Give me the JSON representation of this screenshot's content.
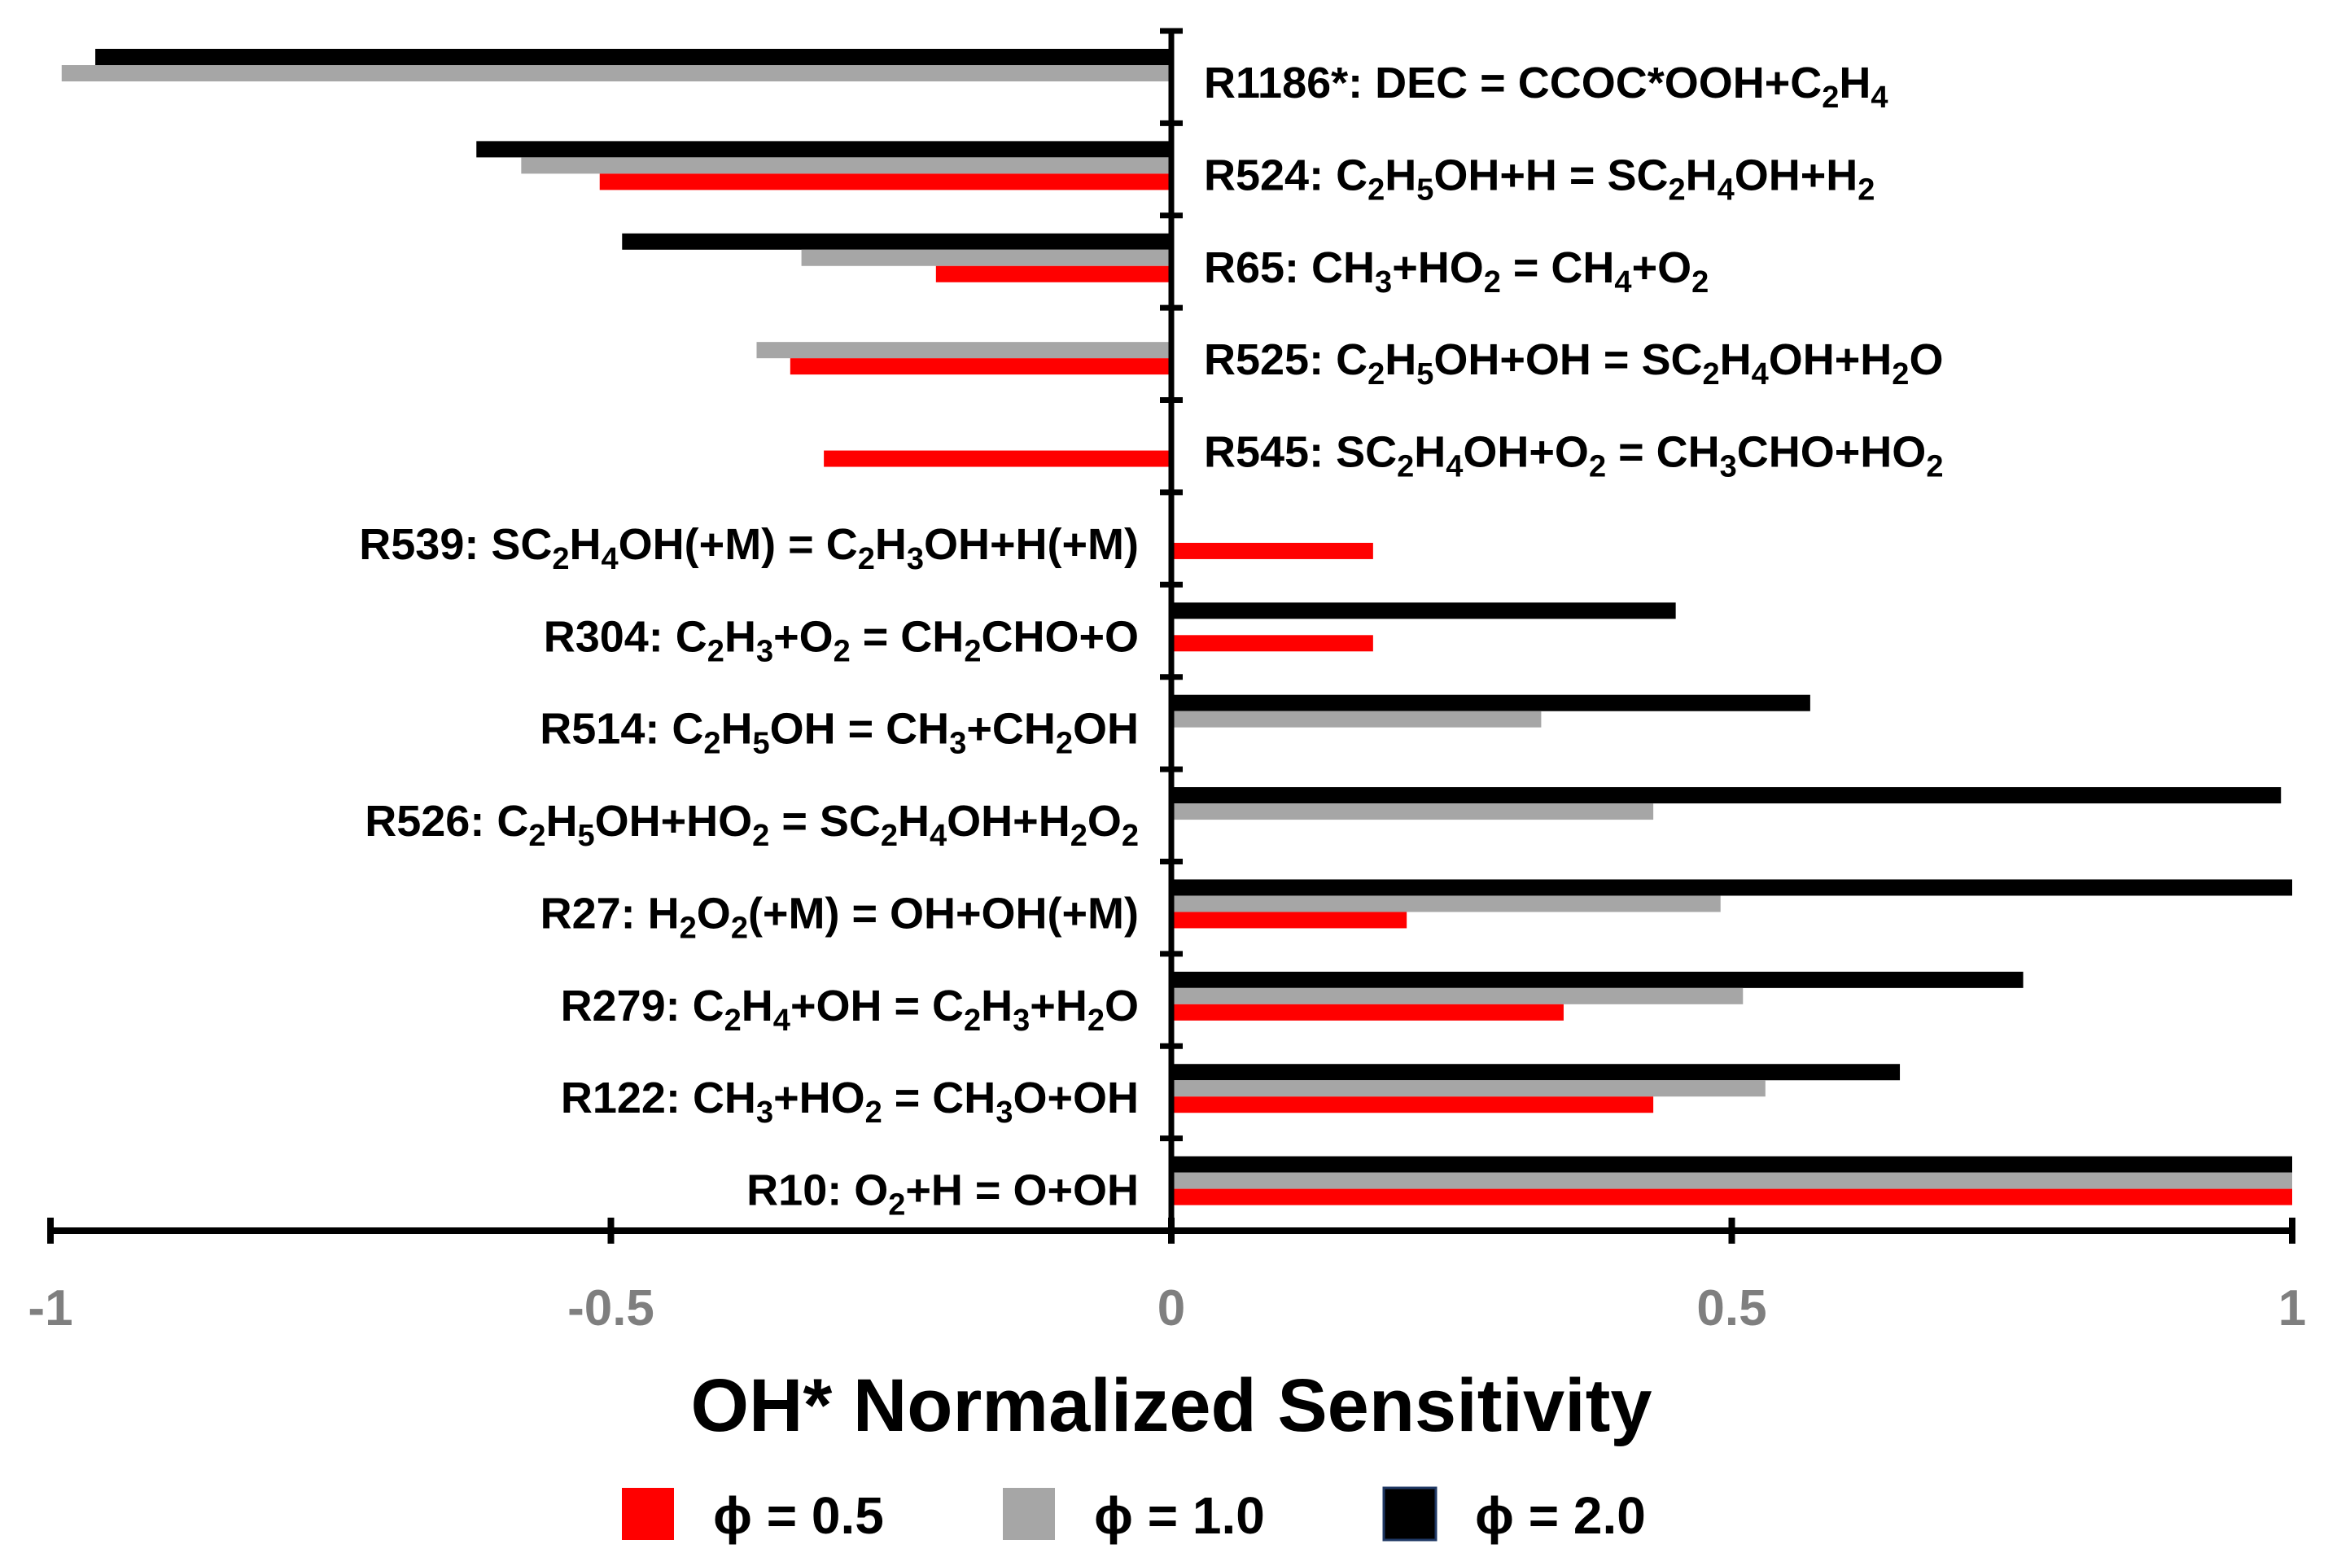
{
  "chart_data": {
    "type": "bar",
    "orientation": "horizontal",
    "xlabel": "OH* Normalized Sensitivity",
    "xlim": [
      -1,
      1
    ],
    "xticks": [
      -1,
      -0.5,
      0,
      0.5,
      1
    ],
    "xtick_labels": [
      "-1",
      "-0.5",
      "0",
      "0.5",
      "1"
    ],
    "legend_placement": "bottom",
    "categories": [
      {
        "id": "R1186",
        "prefix": "R1186*: ",
        "side": "right",
        "parts": [
          [
            "DEC = CCOC*OOH+C"
          ],
          [
            "2",
            "sub"
          ],
          [
            "H"
          ],
          [
            "4",
            "sub"
          ]
        ]
      },
      {
        "id": "R524",
        "prefix": "R524: ",
        "side": "right",
        "parts": [
          [
            "C"
          ],
          [
            "2",
            "sub"
          ],
          [
            "H"
          ],
          [
            "5",
            "sub"
          ],
          [
            "OH+H = SC"
          ],
          [
            "2",
            "sub"
          ],
          [
            "H"
          ],
          [
            "4",
            "sub"
          ],
          [
            "OH+H"
          ],
          [
            "2",
            "sub"
          ]
        ]
      },
      {
        "id": "R65",
        "prefix": "R65: ",
        "side": "right",
        "parts": [
          [
            "CH"
          ],
          [
            "3",
            "sub"
          ],
          [
            "+HO"
          ],
          [
            "2",
            "sub"
          ],
          [
            " = CH"
          ],
          [
            "4",
            "sub"
          ],
          [
            "+O"
          ],
          [
            "2",
            "sub"
          ]
        ]
      },
      {
        "id": "R525",
        "prefix": "R525: ",
        "side": "right",
        "parts": [
          [
            "C"
          ],
          [
            "2",
            "sub"
          ],
          [
            "H"
          ],
          [
            "5",
            "sub"
          ],
          [
            "OH+OH = SC"
          ],
          [
            "2",
            "sub"
          ],
          [
            "H"
          ],
          [
            "4",
            "sub"
          ],
          [
            "OH+H"
          ],
          [
            "2",
            "sub"
          ],
          [
            "O"
          ]
        ]
      },
      {
        "id": "R545",
        "prefix": "R545: ",
        "side": "right",
        "parts": [
          [
            "SC"
          ],
          [
            "2",
            "sub"
          ],
          [
            "H"
          ],
          [
            "4",
            "sub"
          ],
          [
            "OH+O"
          ],
          [
            "2",
            "sub"
          ],
          [
            " = CH"
          ],
          [
            "3",
            "sub"
          ],
          [
            "CHO+HO"
          ],
          [
            "2",
            "sub"
          ]
        ]
      },
      {
        "id": "R539",
        "prefix": "R539: ",
        "side": "left",
        "parts": [
          [
            "SC"
          ],
          [
            "2",
            "sub"
          ],
          [
            "H"
          ],
          [
            "4",
            "sub"
          ],
          [
            "OH(+M) = C"
          ],
          [
            "2",
            "sub"
          ],
          [
            "H"
          ],
          [
            "3",
            "sub"
          ],
          [
            "OH+H(+M)"
          ]
        ]
      },
      {
        "id": "R304",
        "prefix": "R304: ",
        "side": "left",
        "parts": [
          [
            "C"
          ],
          [
            "2",
            "sub"
          ],
          [
            "H"
          ],
          [
            "3",
            "sub"
          ],
          [
            "+O"
          ],
          [
            "2",
            "sub"
          ],
          [
            " = CH"
          ],
          [
            "2",
            "sub"
          ],
          [
            "CHO+O"
          ]
        ]
      },
      {
        "id": "R514",
        "prefix": "R514: ",
        "side": "left",
        "parts": [
          [
            "C"
          ],
          [
            "2",
            "sub"
          ],
          [
            "H"
          ],
          [
            "5",
            "sub"
          ],
          [
            "OH = CH"
          ],
          [
            "3",
            "sub"
          ],
          [
            "+CH"
          ],
          [
            "2",
            "sub"
          ],
          [
            "OH"
          ]
        ]
      },
      {
        "id": "R526",
        "prefix": "R526: ",
        "side": "left",
        "parts": [
          [
            "C"
          ],
          [
            "2",
            "sub"
          ],
          [
            "H"
          ],
          [
            "5",
            "sub"
          ],
          [
            "OH+HO"
          ],
          [
            "2",
            "sub"
          ],
          [
            " = SC"
          ],
          [
            "2",
            "sub"
          ],
          [
            "H"
          ],
          [
            "4",
            "sub"
          ],
          [
            "OH+H"
          ],
          [
            "2",
            "sub"
          ],
          [
            "O"
          ],
          [
            "2",
            "sub"
          ]
        ]
      },
      {
        "id": "R27",
        "prefix": "R27: ",
        "side": "left",
        "parts": [
          [
            "H"
          ],
          [
            "2",
            "sub"
          ],
          [
            "O"
          ],
          [
            "2",
            "sub"
          ],
          [
            "(+M) = OH+OH(+M)"
          ]
        ]
      },
      {
        "id": "R279",
        "prefix": "R279: ",
        "side": "left",
        "parts": [
          [
            "C"
          ],
          [
            "2",
            "sub"
          ],
          [
            "H"
          ],
          [
            "4",
            "sub"
          ],
          [
            "+OH = C"
          ],
          [
            "2",
            "sub"
          ],
          [
            "H"
          ],
          [
            "3",
            "sub"
          ],
          [
            "+H"
          ],
          [
            "2",
            "sub"
          ],
          [
            "O"
          ]
        ]
      },
      {
        "id": "R122",
        "prefix": "R122: ",
        "side": "left",
        "parts": [
          [
            "CH"
          ],
          [
            "3",
            "sub"
          ],
          [
            "+HO"
          ],
          [
            "2",
            "sub"
          ],
          [
            " = CH"
          ],
          [
            "3",
            "sub"
          ],
          [
            "O+OH"
          ]
        ]
      },
      {
        "id": "R10",
        "prefix": "R10: ",
        "side": "left",
        "parts": [
          [
            "O"
          ],
          [
            "2",
            "sub"
          ],
          [
            "+H = O+OH"
          ]
        ]
      }
    ],
    "series": [
      {
        "name": "φ = 2.0",
        "color": "#000000",
        "values": [
          -0.96,
          -0.62,
          -0.49,
          null,
          null,
          null,
          0.45,
          0.57,
          0.99,
          1.0,
          0.76,
          0.65,
          1.0
        ]
      },
      {
        "name": "φ = 1.0",
        "color": "#a6a6a6",
        "values": [
          -0.99,
          -0.58,
          -0.33,
          -0.37,
          null,
          null,
          null,
          0.33,
          0.43,
          0.49,
          0.51,
          0.53,
          1.0
        ]
      },
      {
        "name": "φ = 0.5",
        "color": "#ff0000",
        "values": [
          null,
          -0.51,
          -0.21,
          -0.34,
          -0.31,
          0.18,
          0.18,
          null,
          null,
          0.21,
          0.35,
          0.43,
          1.0
        ]
      }
    ],
    "legend": [
      {
        "label": "ϕ = 0.5",
        "color": "#ff0000"
      },
      {
        "label": "ϕ = 1.0",
        "color": "#a6a6a6"
      },
      {
        "label": "ϕ = 2.0",
        "color": "#000000"
      }
    ]
  }
}
